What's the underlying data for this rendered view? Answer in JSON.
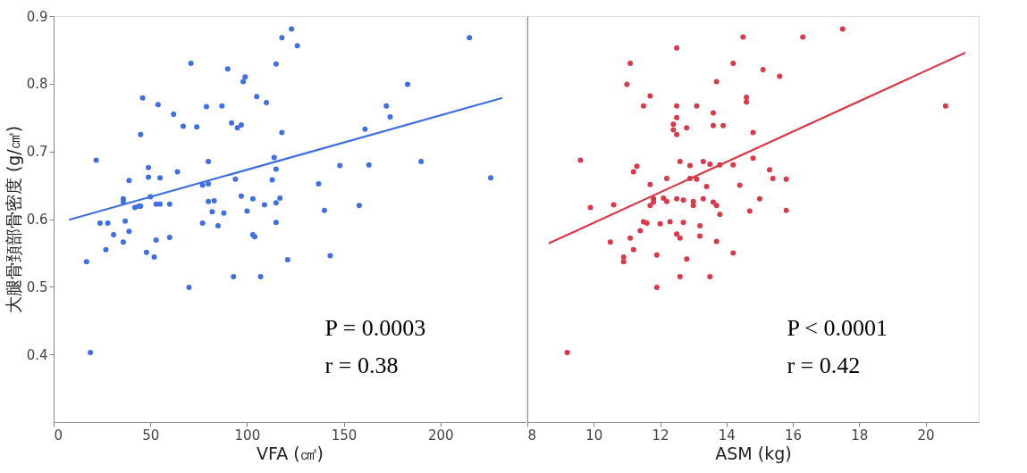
{
  "chart_data": [
    {
      "type": "scatter",
      "xlabel": "VFA (㎠)",
      "ylabel": "大腿骨頚部骨密度 (g/㎠)",
      "xlim": [
        0,
        244
      ],
      "ylim": [
        0.3,
        0.9
      ],
      "xticks": [
        0,
        50,
        100,
        150,
        200
      ],
      "yticks": [
        0.4,
        0.5,
        0.6,
        0.7,
        0.8,
        0.9
      ],
      "grid": false,
      "annotations": [
        "P = 0.0003",
        "r = 0.38"
      ],
      "series": [
        {
          "marker": "circle",
          "color": "#3f6fe0",
          "x": [
            17,
            19,
            22,
            24,
            28,
            27,
            31,
            36,
            36,
            36,
            37,
            39,
            39,
            42,
            44,
            45,
            45,
            46,
            48,
            49,
            49,
            50,
            52,
            53,
            53,
            54,
            55,
            55,
            60,
            60,
            62,
            64,
            67,
            70,
            71,
            74,
            77,
            77,
            79,
            80,
            80,
            80,
            82,
            83,
            85,
            87,
            88,
            90,
            92,
            93,
            94,
            95,
            97,
            97,
            98,
            99,
            100,
            103,
            103,
            104,
            105,
            107,
            109,
            110,
            113,
            114,
            115,
            115,
            115,
            115,
            117,
            118,
            118,
            121,
            123,
            126,
            137,
            140,
            143,
            148,
            158,
            161,
            163,
            172,
            174,
            183,
            190,
            215,
            226
          ],
          "values": [
            0.537,
            0.403,
            0.687,
            0.594,
            0.594,
            0.555,
            0.577,
            0.566,
            0.63,
            0.625,
            0.597,
            0.657,
            0.582,
            0.617,
            0.619,
            0.619,
            0.725,
            0.779,
            0.551,
            0.662,
            0.676,
            0.633,
            0.544,
            0.569,
            0.622,
            0.769,
            0.622,
            0.661,
            0.573,
            0.622,
            0.755,
            0.67,
            0.737,
            0.499,
            0.83,
            0.736,
            0.65,
            0.594,
            0.766,
            0.626,
            0.685,
            0.652,
            0.611,
            0.627,
            0.59,
            0.767,
            0.609,
            0.822,
            0.742,
            0.515,
            0.659,
            0.735,
            0.739,
            0.634,
            0.803,
            0.81,
            0.612,
            0.63,
            0.577,
            0.574,
            0.781,
            0.515,
            0.621,
            0.772,
            0.658,
            0.691,
            0.674,
            0.624,
            0.829,
            0.595,
            0.631,
            0.728,
            0.868,
            0.54,
            0.881,
            0.856,
            0.652,
            0.613,
            0.546,
            0.679,
            0.62,
            0.733,
            0.68,
            0.767,
            0.751,
            0.799,
            0.685,
            0.868,
            0.661
          ]
        },
        {
          "type": "line",
          "marker": "none",
          "color": "#3f6fe0",
          "x": [
            8,
            232
          ],
          "values": [
            0.599,
            0.779
          ]
        }
      ]
    },
    {
      "type": "scatter",
      "xlabel": "ASM (kg)",
      "xlim": [
        8,
        21.6
      ],
      "ylim": [
        0.3,
        0.9
      ],
      "xticks": [
        8,
        10,
        12,
        14,
        16,
        18,
        20
      ],
      "yticks": [
        0.4,
        0.5,
        0.6,
        0.7,
        0.8,
        0.9
      ],
      "tick_labels": "x",
      "grid": false,
      "annotations": [
        "P < 0.0001",
        "r = 0.42"
      ],
      "series": [
        {
          "marker": "circle",
          "color": "#d9394a",
          "x": [
            9.2,
            9.6,
            9.9,
            10.5,
            10.6,
            10.9,
            10.9,
            11.0,
            11.1,
            11.1,
            11.2,
            11.2,
            11.3,
            11.4,
            11.5,
            11.5,
            11.6,
            11.7,
            11.7,
            11.7,
            11.8,
            11.8,
            11.9,
            11.9,
            12.0,
            12.1,
            12.2,
            12.2,
            12.3,
            12.4,
            12.4,
            12.5,
            12.5,
            12.5,
            12.5,
            12.5,
            12.5,
            12.6,
            12.6,
            12.6,
            12.7,
            12.7,
            12.8,
            12.8,
            12.9,
            12.9,
            13.0,
            13.0,
            13.1,
            13.1,
            13.2,
            13.2,
            13.3,
            13.3,
            13.4,
            13.5,
            13.5,
            13.6,
            13.6,
            13.6,
            13.7,
            13.7,
            13.7,
            13.8,
            13.9,
            13.8,
            14.2,
            14.2,
            14.2,
            14.4,
            14.5,
            14.6,
            14.6,
            14.8,
            14.8,
            14.7,
            15.0,
            15.1,
            15.3,
            15.4,
            15.6,
            15.8,
            15.8,
            16.3,
            17.5,
            20.6
          ],
          "values": [
            0.403,
            0.687,
            0.617,
            0.566,
            0.621,
            0.537,
            0.544,
            0.799,
            0.572,
            0.83,
            0.67,
            0.555,
            0.678,
            0.583,
            0.767,
            0.596,
            0.594,
            0.782,
            0.651,
            0.62,
            0.625,
            0.63,
            0.547,
            0.499,
            0.593,
            0.631,
            0.66,
            0.626,
            0.596,
            0.74,
            0.732,
            0.853,
            0.767,
            0.75,
            0.725,
            0.63,
            0.578,
            0.685,
            0.572,
            0.515,
            0.628,
            0.595,
            0.541,
            0.735,
            0.679,
            0.66,
            0.626,
            0.62,
            0.767,
            0.659,
            0.59,
            0.575,
            0.685,
            0.63,
            0.648,
            0.515,
            0.681,
            0.757,
            0.625,
            0.738,
            0.62,
            0.803,
            0.567,
            0.607,
            0.738,
            0.68,
            0.83,
            0.55,
            0.68,
            0.65,
            0.869,
            0.773,
            0.78,
            0.728,
            0.69,
            0.612,
            0.63,
            0.821,
            0.673,
            0.66,
            0.811,
            0.659,
            0.613,
            0.869,
            0.881,
            0.767
          ]
        },
        {
          "type": "line",
          "marker": "none",
          "color": "#d9394a",
          "x": [
            8.64,
            21.2
          ],
          "values": [
            0.564,
            0.846
          ]
        }
      ]
    }
  ]
}
